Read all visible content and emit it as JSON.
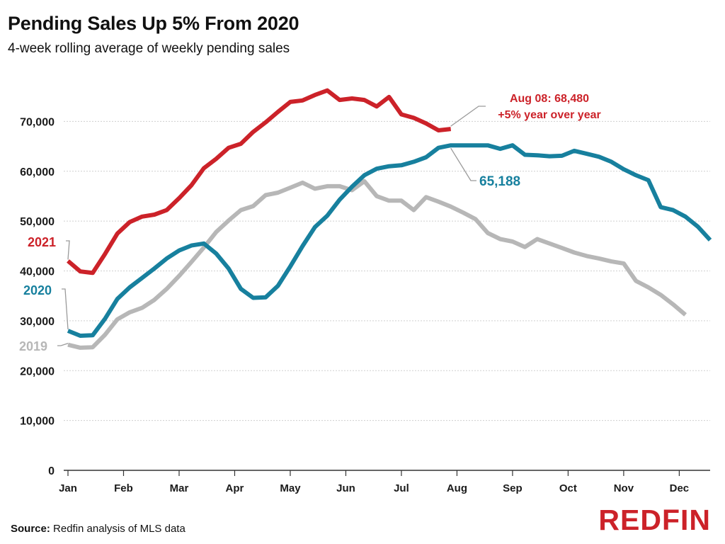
{
  "title": "Pending Sales Up 5% From 2020",
  "subtitle": "4-week rolling average of weekly pending sales",
  "source_label": "Source:",
  "source_text": "Redfin analysis of MLS data",
  "logo_text": "REDFIN",
  "colors": {
    "s2021": "#cc2229",
    "s2020": "#17809e",
    "s2019": "#b7b7b7",
    "logo": "#cc2229",
    "grid": "#cfcfcf"
  },
  "chart_data": {
    "type": "line",
    "xlabel": "",
    "ylabel": "",
    "ylim": [
      0,
      80000
    ],
    "xlim": [
      1,
      53
    ],
    "y_ticks": [
      0,
      10000,
      20000,
      30000,
      40000,
      50000,
      60000,
      70000
    ],
    "y_tick_labels": [
      "0",
      "10,000",
      "20,000",
      "30,000",
      "40,000",
      "50,000",
      "60,000",
      "70,000"
    ],
    "x_tick_labels": [
      "Jan",
      "Feb",
      "Mar",
      "Apr",
      "May",
      "Jun",
      "Jul",
      "Aug",
      "Sep",
      "Oct",
      "Nov",
      "Dec"
    ],
    "x_tick_weeks": [
      1,
      5.5,
      10,
      14.5,
      19,
      23.5,
      28,
      32.5,
      37,
      41.5,
      46,
      50.5
    ],
    "grid": "horizontal",
    "series": [
      {
        "name": "2019",
        "color_key": "s2019",
        "points": [
          [
            1,
            25200
          ],
          [
            2,
            24600
          ],
          [
            3,
            24700
          ],
          [
            4,
            27200
          ],
          [
            5,
            30300
          ],
          [
            6,
            31700
          ],
          [
            7,
            32600
          ],
          [
            8,
            34200
          ],
          [
            9,
            36400
          ],
          [
            10,
            39000
          ],
          [
            11,
            41800
          ],
          [
            12,
            44700
          ],
          [
            13,
            47800
          ],
          [
            14,
            50100
          ],
          [
            15,
            52200
          ],
          [
            16,
            53000
          ],
          [
            17,
            55200
          ],
          [
            18,
            55700
          ],
          [
            19,
            56700
          ],
          [
            20,
            57700
          ],
          [
            21,
            56500
          ],
          [
            22,
            57000
          ],
          [
            23,
            57000
          ],
          [
            24,
            56200
          ],
          [
            25,
            58000
          ],
          [
            26,
            55000
          ],
          [
            27,
            54100
          ],
          [
            28,
            54100
          ],
          [
            29,
            52200
          ],
          [
            30,
            54800
          ],
          [
            31,
            53900
          ],
          [
            32,
            52900
          ],
          [
            33,
            51700
          ],
          [
            34,
            50400
          ],
          [
            35,
            47600
          ],
          [
            36,
            46400
          ],
          [
            37,
            45900
          ],
          [
            38,
            44800
          ],
          [
            39,
            46400
          ],
          [
            40,
            45500
          ],
          [
            41,
            44600
          ],
          [
            42,
            43700
          ],
          [
            43,
            43000
          ],
          [
            44,
            42500
          ],
          [
            45,
            41900
          ],
          [
            46,
            41500
          ],
          [
            47,
            38000
          ],
          [
            48,
            36700
          ],
          [
            49,
            35200
          ],
          [
            50,
            33300
          ],
          [
            51,
            31200
          ]
        ]
      },
      {
        "name": "2020",
        "color_key": "s2020",
        "points": [
          [
            1,
            28000
          ],
          [
            2,
            27000
          ],
          [
            3,
            27100
          ],
          [
            4,
            30400
          ],
          [
            5,
            34400
          ],
          [
            6,
            36700
          ],
          [
            7,
            38600
          ],
          [
            8,
            40500
          ],
          [
            9,
            42500
          ],
          [
            10,
            44100
          ],
          [
            11,
            45100
          ],
          [
            12,
            45500
          ],
          [
            13,
            43500
          ],
          [
            14,
            40500
          ],
          [
            15,
            36400
          ],
          [
            16,
            34600
          ],
          [
            17,
            34700
          ],
          [
            18,
            37000
          ],
          [
            19,
            40900
          ],
          [
            20,
            45000
          ],
          [
            21,
            48800
          ],
          [
            22,
            51100
          ],
          [
            23,
            54300
          ],
          [
            24,
            56900
          ],
          [
            25,
            59200
          ],
          [
            26,
            60500
          ],
          [
            27,
            61000
          ],
          [
            28,
            61200
          ],
          [
            29,
            61900
          ],
          [
            30,
            62800
          ],
          [
            31,
            64700
          ],
          [
            32,
            65200
          ],
          [
            33,
            65200
          ],
          [
            34,
            65200
          ],
          [
            35,
            65200
          ],
          [
            36,
            64500
          ],
          [
            37,
            65200
          ],
          [
            38,
            63300
          ],
          [
            39,
            63200
          ],
          [
            40,
            63000
          ],
          [
            41,
            63100
          ],
          [
            42,
            64100
          ],
          [
            43,
            63500
          ],
          [
            44,
            62900
          ],
          [
            45,
            61900
          ],
          [
            46,
            60400
          ],
          [
            47,
            59200
          ],
          [
            48,
            58200
          ],
          [
            49,
            52800
          ],
          [
            50,
            52200
          ],
          [
            51,
            50900
          ],
          [
            52,
            48900
          ],
          [
            53,
            46200
          ]
        ]
      },
      {
        "name": "2021",
        "color_key": "s2021",
        "points": [
          [
            1,
            42000
          ],
          [
            2,
            39900
          ],
          [
            3,
            39600
          ],
          [
            4,
            43400
          ],
          [
            5,
            47500
          ],
          [
            6,
            49800
          ],
          [
            7,
            50900
          ],
          [
            8,
            51300
          ],
          [
            9,
            52200
          ],
          [
            10,
            54600
          ],
          [
            11,
            57200
          ],
          [
            12,
            60600
          ],
          [
            13,
            62500
          ],
          [
            14,
            64700
          ],
          [
            15,
            65500
          ],
          [
            16,
            67900
          ],
          [
            17,
            69800
          ],
          [
            18,
            71900
          ],
          [
            19,
            73900
          ],
          [
            20,
            74200
          ],
          [
            21,
            75300
          ],
          [
            22,
            76200
          ],
          [
            23,
            74300
          ],
          [
            24,
            74600
          ],
          [
            25,
            74300
          ],
          [
            26,
            73000
          ],
          [
            27,
            74900
          ],
          [
            28,
            71400
          ],
          [
            29,
            70700
          ],
          [
            30,
            69600
          ],
          [
            31,
            68200
          ],
          [
            32,
            68480
          ]
        ]
      }
    ],
    "annotations": {
      "s2021_value_line1": "Aug 08: 68,480",
      "s2021_value_line2": "+5% year over year",
      "s2020_value": "65,188"
    }
  }
}
